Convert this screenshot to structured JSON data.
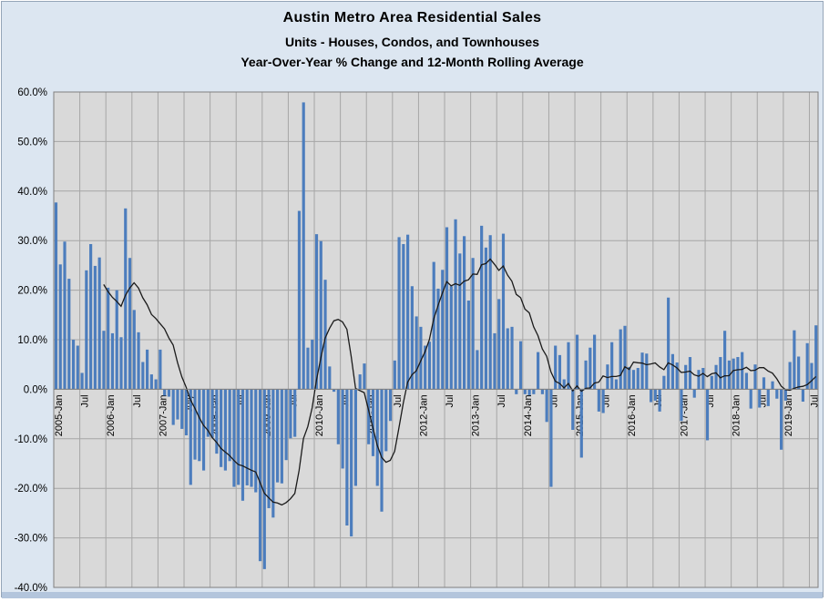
{
  "window": {
    "background_color": "#dce6f1",
    "plot_background_color": "#d9d9d9",
    "gridline_color": "#a6a6a6",
    "border_color": "#7f7f7f",
    "footer_strip_color": "#b3c5dc"
  },
  "chart_data": {
    "type": "bar",
    "title": "Austin Metro Area Residential Sales",
    "subtitle1": "Units - Houses, Condos, and Townhouses",
    "subtitle2": "Year-Over-Year % Change and 12-Month Rolling Average",
    "bar_color": "#4C7DBD",
    "line_color": "#1a1a1a",
    "ylim": [
      -40,
      60
    ],
    "y_tick_step": 10,
    "y_tick_labels": [
      "60.0%",
      "50.0%",
      "40.0%",
      "30.0%",
      "20.0%",
      "10.0%",
      "0.0%",
      "-10.0%",
      "-20.0%",
      "-30.0%",
      "-40.0%"
    ],
    "x_tick_every_months": 6,
    "x_tick_labels": [
      "2005-Jan",
      "Jul",
      "2006-Jan",
      "Jul",
      "2007-Jan",
      "July",
      "2008-Jan",
      "Jul",
      "2009-Jan",
      "Jul",
      "2010-Jan",
      "Jul",
      "2011-Jan",
      "Jul",
      "2012-Jan",
      "Jul",
      "2013-Jan",
      "Jul",
      "2014-Jan",
      "Jul",
      "2015-Jan",
      "Jul",
      "2016-Jan",
      "Jul",
      "2017-Jan",
      "Jul",
      "2018-Jan",
      "Jul",
      "2019-Jan",
      "Jul"
    ],
    "series": [
      {
        "name": "Year-Over-Year % Change",
        "kind": "bar"
      },
      {
        "name": "12-Month Rolling Average",
        "kind": "line",
        "window_months": 12
      }
    ],
    "first_month": "2005-Jan",
    "last_month": "2019-Aug",
    "values_by_year": {
      "2005": [
        37.7,
        25.2,
        29.8,
        22.3,
        10.0,
        8.8,
        3.3,
        24.0,
        29.3,
        24.9,
        26.6,
        11.8
      ],
      "2006": [
        20.5,
        11.3,
        20.0,
        10.5,
        36.5,
        26.5,
        16.0,
        11.5,
        5.5,
        8.0,
        3.0,
        2.0
      ],
      "2007": [
        8.0,
        -1.3,
        -1.5,
        -7.2,
        -6.1,
        -8.0,
        -9.3,
        -19.3,
        -14.2,
        -14.5,
        -16.4,
        -9.6
      ],
      "2008": [
        -9.8,
        -13.0,
        -15.7,
        -16.4,
        -14.5,
        -19.7,
        -19.3,
        -22.5,
        -19.4,
        -19.7,
        -20.8,
        -34.7
      ],
      "2009": [
        -36.3,
        -24.0,
        -25.9,
        -18.8,
        -19.0,
        -14.3,
        -9.9,
        -9.6,
        36.0,
        57.9,
        8.4,
        10.0
      ],
      "2010": [
        31.3,
        29.9,
        22.1,
        4.6,
        -0.5,
        -11.1,
        -16.0,
        -27.5,
        -29.7,
        -19.5,
        3.0,
        5.2
      ],
      "2011": [
        -11.1,
        -13.5,
        -19.5,
        -24.7,
        -12.5,
        -6.4,
        5.8,
        30.7,
        29.3,
        31.2,
        20.8,
        14.7
      ],
      "2012": [
        12.6,
        8.8,
        9.6,
        25.7,
        20.3,
        24.1,
        32.7,
        20.8,
        34.3,
        27.4,
        30.9,
        17.9
      ],
      "2013": [
        26.5,
        7.9,
        33.0,
        28.6,
        31.1,
        11.3,
        18.2,
        31.4,
        12.3,
        12.6,
        -1.0,
        9.7
      ],
      "2014": [
        -1.0,
        -1.2,
        -1.0,
        7.5,
        -1.0,
        -6.6,
        -19.7,
        8.8,
        6.9,
        2.0,
        9.5,
        -8.2
      ],
      "2015": [
        11.0,
        -13.8,
        5.8,
        8.4,
        11.0,
        -4.5,
        -4.8,
        5.0,
        9.5,
        2.0,
        12.1,
        12.8
      ],
      "2016": [
        4.5,
        3.9,
        4.3,
        7.4,
        7.2,
        -2.6,
        -2.3,
        -4.5,
        2.7,
        18.5,
        7.1,
        5.4
      ],
      "2017": [
        -6.4,
        4.9,
        6.5,
        -1.7,
        3.9,
        4.3,
        -10.3,
        2.7,
        4.9,
        6.5,
        11.8,
        5.8
      ],
      "2018": [
        6.2,
        6.5,
        7.5,
        3.3,
        -3.9,
        5.0,
        -3.7,
        2.4,
        -3.4,
        1.6,
        -1.9,
        -12.2
      ],
      "2019": [
        -2.3,
        5.5,
        11.9,
        6.6,
        -2.5,
        9.3,
        5.3,
        12.9
      ]
    }
  }
}
